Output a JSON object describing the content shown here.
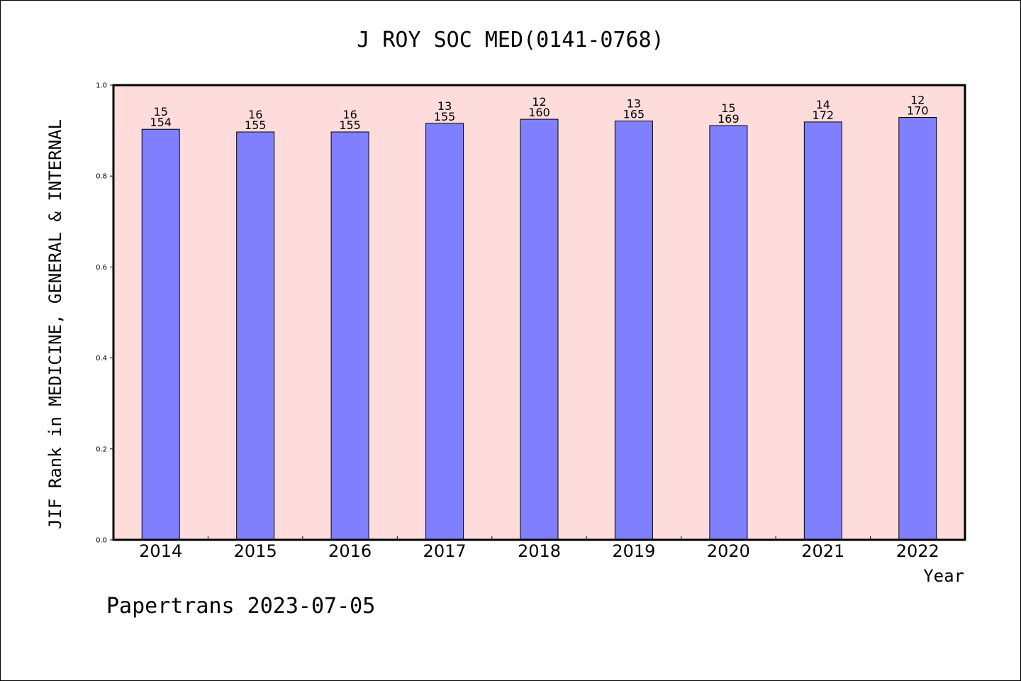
{
  "chart_data": {
    "type": "bar",
    "title": "J ROY SOC MED(0141-0768)",
    "xlabel": "Year",
    "ylabel": "JIF Rank in MEDICINE, GENERAL & INTERNAL",
    "categories": [
      "2014",
      "2015",
      "2016",
      "2017",
      "2018",
      "2019",
      "2020",
      "2021",
      "2022"
    ],
    "values": [
      0.903,
      0.897,
      0.897,
      0.916,
      0.925,
      0.921,
      0.911,
      0.919,
      0.929
    ],
    "rank": [
      "15",
      "16",
      "16",
      "13",
      "12",
      "13",
      "15",
      "14",
      "12"
    ],
    "total": [
      "154",
      "155",
      "155",
      "155",
      "160",
      "165",
      "169",
      "172",
      "170"
    ],
    "ylim": [
      0,
      1.0
    ],
    "yticks": [
      "0.0",
      "0.2",
      "0.4",
      "0.6",
      "0.8",
      "1.0"
    ],
    "grid": false,
    "colors": {
      "bar": "#8080ff",
      "plot_bg": "#ffdcdc",
      "axis": "#000000"
    }
  },
  "footer": "Papertrans 2023-07-05"
}
